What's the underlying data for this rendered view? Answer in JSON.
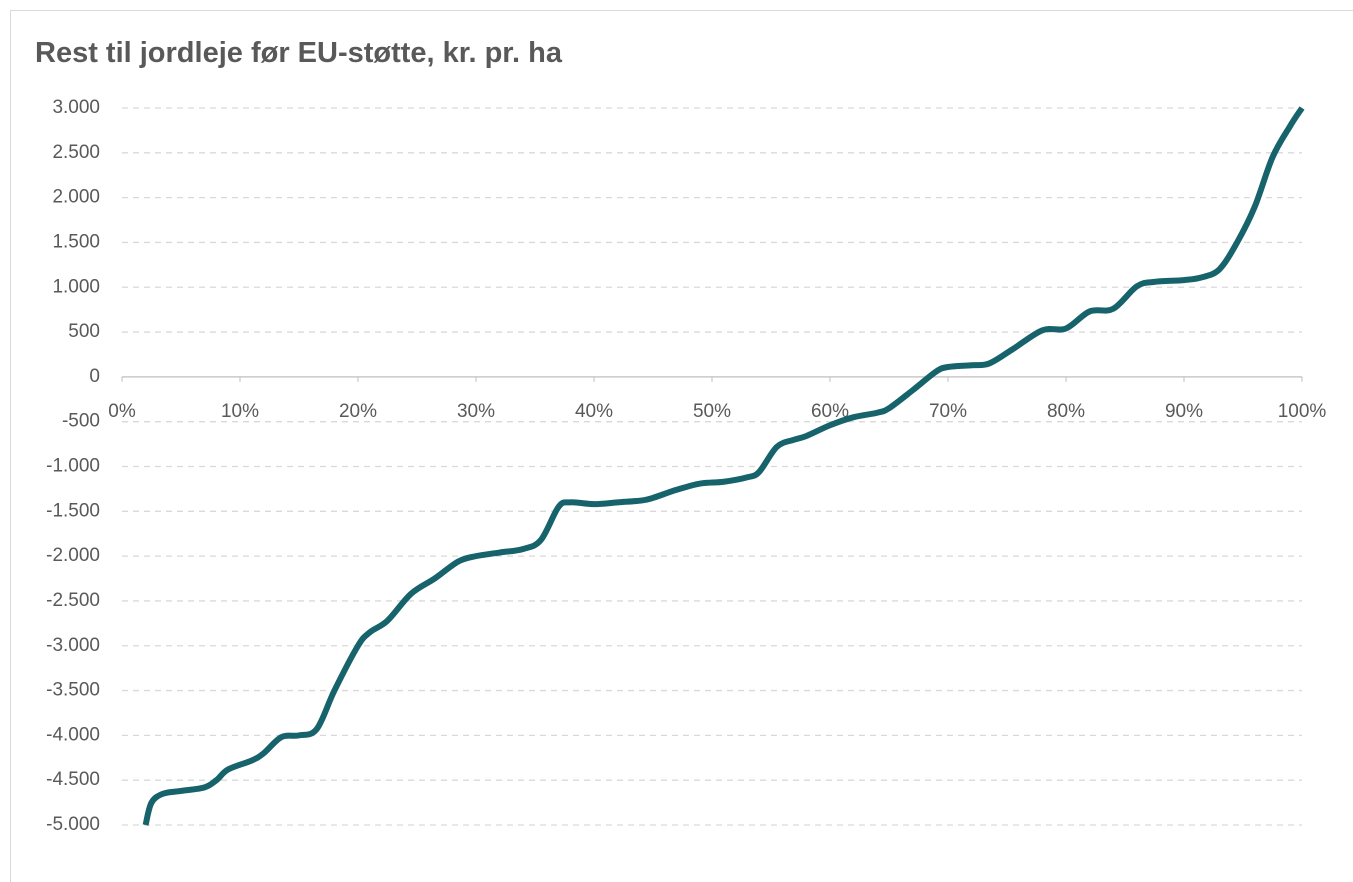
{
  "chart_data": {
    "type": "line",
    "title": "Rest til jordleje før EU-støtte, kr. pr. ha",
    "x": [
      2,
      2.5,
      3.5,
      5,
      7,
      8,
      9,
      11,
      12,
      13.5,
      15,
      16.5,
      18,
      20,
      21,
      22.5,
      24.5,
      26.5,
      28.5,
      30,
      32,
      34,
      35.5,
      37,
      38,
      40,
      42,
      44,
      45,
      47,
      49,
      51,
      53,
      54,
      55.5,
      57,
      58,
      60,
      62,
      64,
      65,
      67,
      69,
      70,
      72,
      73.5,
      75.5,
      78,
      80,
      82,
      84,
      86,
      87.5,
      90,
      91.5,
      93,
      94.5,
      96,
      97.5,
      99,
      100
    ],
    "series": [
      {
        "name": "Rest til jordleje",
        "color": "#16636b",
        "values": [
          -5000,
          -4750,
          -4650,
          -4620,
          -4580,
          -4500,
          -4380,
          -4280,
          -4200,
          -4020,
          -4000,
          -3930,
          -3500,
          -3000,
          -2850,
          -2720,
          -2420,
          -2250,
          -2060,
          -2000,
          -1960,
          -1920,
          -1820,
          -1450,
          -1400,
          -1420,
          -1400,
          -1380,
          -1350,
          -1260,
          -1190,
          -1170,
          -1120,
          -1060,
          -780,
          -700,
          -660,
          -540,
          -450,
          -400,
          -350,
          -150,
          60,
          110,
          130,
          150,
          310,
          520,
          540,
          730,
          760,
          1010,
          1060,
          1080,
          1110,
          1200,
          1500,
          1900,
          2450,
          2800,
          3000
        ]
      }
    ],
    "xlim": [
      0,
      100
    ],
    "xticks": [
      {
        "value": 0,
        "label": "0%"
      },
      {
        "value": 10,
        "label": "10%"
      },
      {
        "value": 20,
        "label": "20%"
      },
      {
        "value": 30,
        "label": "30%"
      },
      {
        "value": 40,
        "label": "40%"
      },
      {
        "value": 50,
        "label": "50%"
      },
      {
        "value": 60,
        "label": "60%"
      },
      {
        "value": 70,
        "label": "70%"
      },
      {
        "value": 80,
        "label": "80%"
      },
      {
        "value": 90,
        "label": "90%"
      },
      {
        "value": 100,
        "label": "100%"
      }
    ],
    "ylim": [
      -5000,
      3000
    ],
    "yticks": [
      {
        "value": 3000,
        "label": "3.000"
      },
      {
        "value": 2500,
        "label": "2.500"
      },
      {
        "value": 2000,
        "label": "2.000"
      },
      {
        "value": 1500,
        "label": "1.500"
      },
      {
        "value": 1000,
        "label": "1.000"
      },
      500,
      0,
      -500,
      {
        "value": -1000,
        "label": "-1.000"
      },
      {
        "value": -1500,
        "label": "-1.500"
      },
      {
        "value": -2000,
        "label": "-2.000"
      },
      {
        "value": -2500,
        "label": "-2.500"
      },
      {
        "value": -3000,
        "label": "-3.000"
      },
      {
        "value": -3500,
        "label": "-3.500"
      },
      {
        "value": -4000,
        "label": "-4.000"
      },
      {
        "value": -4500,
        "label": "-4.500"
      },
      {
        "value": -5000,
        "label": "-5.000"
      }
    ],
    "grid": true
  }
}
